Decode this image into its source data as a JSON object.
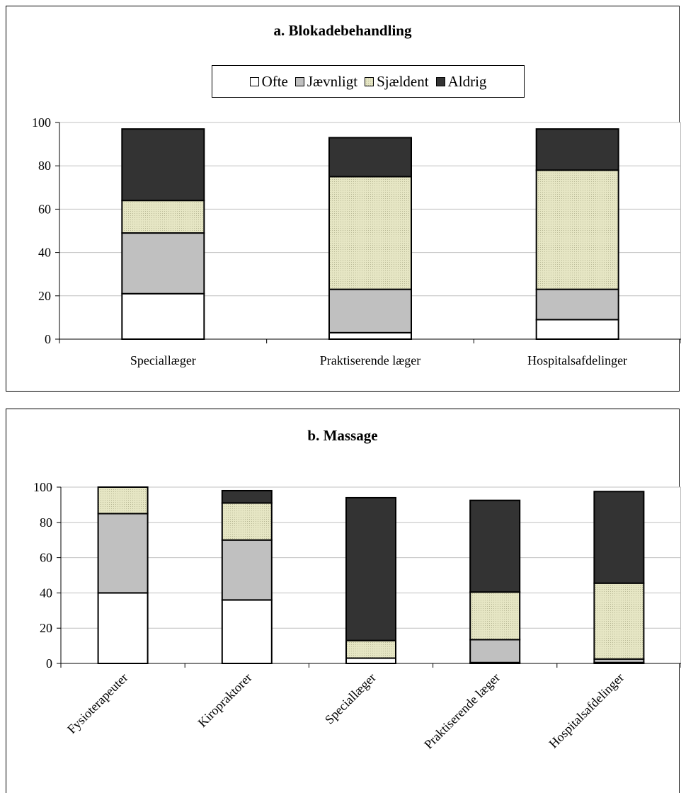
{
  "colors": {
    "Ofte": "#ffffff",
    "Jævnligt": "#c0c0c0",
    "Sjældent": "#e6e6c4",
    "Aldrig": "#333333",
    "gridline": "#c0c0c0",
    "border": "#000000"
  },
  "chart_data": [
    {
      "type": "bar",
      "stacked": true,
      "title": "a. Blokadebehandling",
      "categories": [
        "Speciallæger",
        "Praktiserende læger",
        "Hospitalsafdelinger"
      ],
      "series": [
        {
          "name": "Ofte",
          "values": [
            21,
            3,
            9
          ]
        },
        {
          "name": "Jævnligt",
          "values": [
            28,
            20,
            14
          ]
        },
        {
          "name": "Sjældent",
          "values": [
            15,
            52,
            55
          ]
        },
        {
          "name": "Aldrig",
          "values": [
            33,
            18,
            19
          ]
        }
      ],
      "yticks": [
        "0",
        "20",
        "40",
        "60",
        "80",
        "100"
      ],
      "ylim": [
        0,
        100
      ],
      "legend": "top",
      "grid": true
    },
    {
      "type": "bar",
      "stacked": true,
      "title": "b. Massage",
      "categories": [
        "Fysioterapeuter",
        "Kiropraktorer",
        "Speciallæger",
        "Praktiserende læger",
        "Hospitalsafdelinger"
      ],
      "series": [
        {
          "name": "Ofte",
          "values": [
            40,
            36,
            3,
            0.5,
            0.5
          ]
        },
        {
          "name": "Jævnligt",
          "values": [
            45,
            34,
            0,
            13,
            2
          ]
        },
        {
          "name": "Sjældent",
          "values": [
            15,
            21,
            10,
            27,
            43
          ]
        },
        {
          "name": "Aldrig",
          "values": [
            0,
            7,
            81,
            52,
            52
          ]
        }
      ],
      "yticks": [
        "0",
        "20",
        "40",
        "60",
        "80",
        "100"
      ],
      "ylim": [
        0,
        100
      ],
      "legend": "none",
      "grid": true
    }
  ]
}
